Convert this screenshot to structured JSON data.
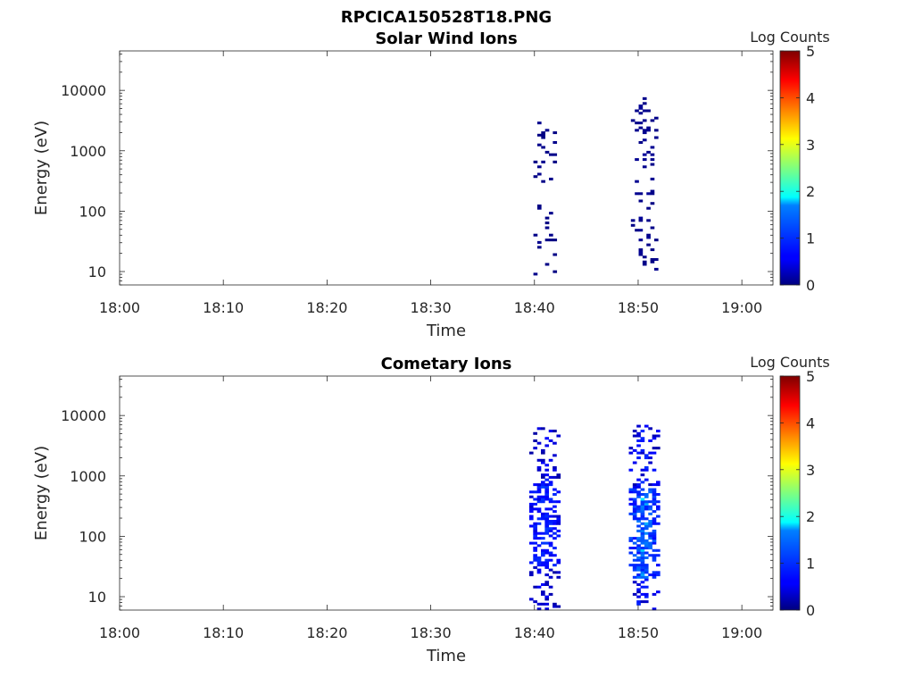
{
  "figure": {
    "title": "RPCICA150528T18.PNG"
  },
  "chart_data": [
    {
      "type": "heatmap",
      "title": "Solar Wind Ions",
      "xlabel": "Time",
      "ylabel": "Energy (eV)",
      "x_ticks": [
        "18:00",
        "18:10",
        "18:20",
        "18:30",
        "18:40",
        "18:50",
        "19:00"
      ],
      "xlim_minutes": [
        0,
        63
      ],
      "y_ticks": [
        10,
        100,
        1000,
        10000
      ],
      "y_tick_labels": [
        "10",
        "100",
        "1000",
        "10000"
      ],
      "ylim": [
        6,
        45000
      ],
      "yscale": "log",
      "colorbar": {
        "label": "Log Counts",
        "ticks": [
          "0",
          "1",
          "2",
          "3",
          "4",
          "5"
        ],
        "range": [
          0,
          5
        ],
        "colormap": "jet"
      },
      "bursts": [
        {
          "minute": 41.0,
          "width": 2.2,
          "emin": 8,
          "emax": 5000,
          "mean_log_counts": 0.1,
          "density": 0.35
        },
        {
          "minute": 50.6,
          "width": 2.6,
          "emin": 8,
          "emax": 8000,
          "mean_log_counts": 0.15,
          "density": 0.5
        }
      ]
    },
    {
      "type": "heatmap",
      "title": "Cometary Ions",
      "xlabel": "Time",
      "ylabel": "Energy (eV)",
      "x_ticks": [
        "18:00",
        "18:10",
        "18:20",
        "18:30",
        "18:40",
        "18:50",
        "19:00"
      ],
      "xlim_minutes": [
        0,
        63
      ],
      "y_ticks": [
        10,
        100,
        1000,
        10000
      ],
      "y_tick_labels": [
        "10",
        "100",
        "1000",
        "10000"
      ],
      "ylim": [
        6,
        45000
      ],
      "yscale": "log",
      "colorbar": {
        "label": "Log Counts",
        "ticks": [
          "0",
          "1",
          "2",
          "3",
          "4",
          "5"
        ],
        "range": [
          0,
          5
        ],
        "colormap": "jet"
      },
      "bursts": [
        {
          "minute": 41.0,
          "width": 3.0,
          "emin": 6,
          "emax": 6000,
          "core_emin": 30,
          "core_emax": 900,
          "mean_log_counts": 0.8,
          "density": 0.75
        },
        {
          "minute": 50.5,
          "width": 2.8,
          "emin": 6,
          "emax": 7000,
          "core_emin": 20,
          "core_emax": 600,
          "mean_log_counts": 1.3,
          "density": 0.8
        }
      ]
    }
  ]
}
